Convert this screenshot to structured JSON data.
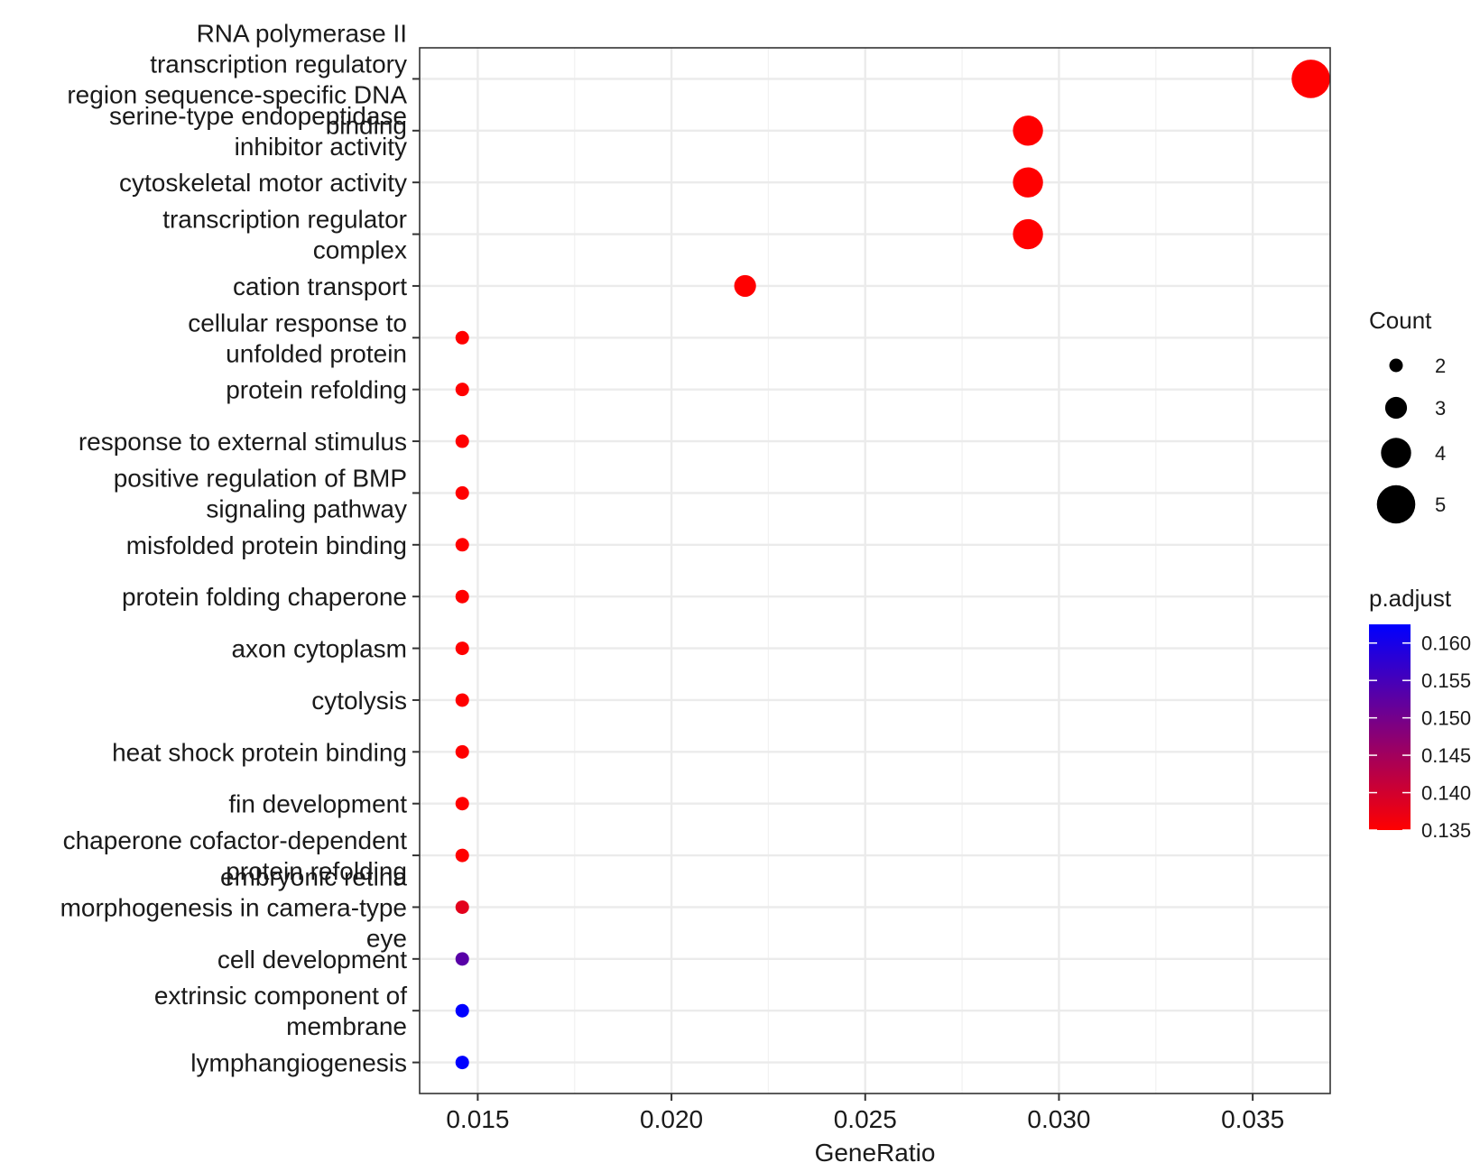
{
  "chart_data": {
    "type": "scatter",
    "title": "",
    "xlabel": "GeneRatio",
    "ylabel": "",
    "xlim": [
      0.0135,
      0.037
    ],
    "x_ticks": [
      "0.015",
      "0.020",
      "0.025",
      "0.030",
      "0.035"
    ],
    "x_tick_values": [
      0.015,
      0.02,
      0.025,
      0.03,
      0.035
    ],
    "grid": true,
    "legend_position": "right",
    "categories": [
      "RNA polymerase II\ntranscription regulatory\nregion sequence-specific DNA\nbinding",
      "serine-type endopeptidase\ninhibitor activity",
      "cytoskeletal motor activity",
      "transcription regulator\ncomplex",
      "cation transport",
      "cellular response to\nunfolded protein",
      "protein refolding",
      "response to external stimulus",
      "positive regulation of BMP\nsignaling pathway",
      "misfolded protein binding",
      "protein folding chaperone",
      "axon cytoplasm",
      "cytolysis",
      "heat shock protein binding",
      "fin development",
      "chaperone cofactor-dependent\nprotein refolding",
      "embryonic retina\nmorphogenesis in camera-type\neye",
      "cell development",
      "extrinsic component of\nmembrane",
      "lymphangiogenesis"
    ],
    "points": [
      {
        "x": 0.0365,
        "count": 5,
        "p_adjust": 0.135
      },
      {
        "x": 0.0292,
        "count": 4,
        "p_adjust": 0.135
      },
      {
        "x": 0.0292,
        "count": 4,
        "p_adjust": 0.135
      },
      {
        "x": 0.0292,
        "count": 4,
        "p_adjust": 0.135
      },
      {
        "x": 0.0219,
        "count": 3,
        "p_adjust": 0.135
      },
      {
        "x": 0.0146,
        "count": 2,
        "p_adjust": 0.135
      },
      {
        "x": 0.0146,
        "count": 2,
        "p_adjust": 0.135
      },
      {
        "x": 0.0146,
        "count": 2,
        "p_adjust": 0.135
      },
      {
        "x": 0.0146,
        "count": 2,
        "p_adjust": 0.135
      },
      {
        "x": 0.0146,
        "count": 2,
        "p_adjust": 0.135
      },
      {
        "x": 0.0146,
        "count": 2,
        "p_adjust": 0.135
      },
      {
        "x": 0.0146,
        "count": 2,
        "p_adjust": 0.135
      },
      {
        "x": 0.0146,
        "count": 2,
        "p_adjust": 0.135
      },
      {
        "x": 0.0146,
        "count": 2,
        "p_adjust": 0.135
      },
      {
        "x": 0.0146,
        "count": 2,
        "p_adjust": 0.135
      },
      {
        "x": 0.0146,
        "count": 2,
        "p_adjust": 0.135
      },
      {
        "x": 0.0146,
        "count": 2,
        "p_adjust": 0.138
      },
      {
        "x": 0.0146,
        "count": 2,
        "p_adjust": 0.153
      },
      {
        "x": 0.0146,
        "count": 2,
        "p_adjust": 0.1625
      },
      {
        "x": 0.0146,
        "count": 2,
        "p_adjust": 0.1625
      }
    ],
    "legend_size": {
      "title": "Count",
      "values": [
        2,
        3,
        4,
        5
      ],
      "labels": [
        "2",
        "3",
        "4",
        "5"
      ]
    },
    "legend_color": {
      "title": "p.adjust",
      "min": 0.135,
      "max": 0.1625,
      "ticks": [
        0.135,
        0.14,
        0.145,
        0.15,
        0.155,
        0.16
      ],
      "tick_labels": [
        "0.135",
        "0.140",
        "0.145",
        "0.150",
        "0.155",
        "0.160"
      ],
      "low_color": "#FF0000",
      "high_color": "#0000FF"
    },
    "panel_border_color": "#333333",
    "grid_color": "#EBEBEB"
  }
}
